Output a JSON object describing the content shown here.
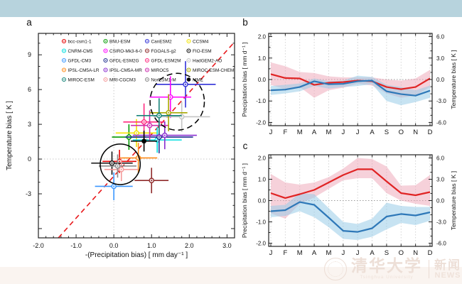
{
  "page": {
    "top_band_color": "#b7d3dd",
    "bottom_band_color": "#faf4f0",
    "background": "#ffffff"
  },
  "watermark": {
    "university_cn": "清华大学",
    "university_en": "Tsinghua University",
    "news_cn": "新闻",
    "news_en": "NEWS",
    "color": "#eddfd7"
  },
  "chart_data": [
    {
      "id": "a",
      "type": "scatter",
      "panel_label": "a",
      "xlabel": "-(Precipitation bias) [ mm day⁻¹ ]",
      "ylabel": "Temperature bias [ K ]",
      "xlim": [
        -2.0,
        3.2
      ],
      "ylim": [
        -6.8,
        10.85
      ],
      "xticks": [
        "-2.0",
        "-1.0",
        "0.0",
        "1.0",
        "2.0",
        "3.0"
      ],
      "xtick_values": [
        -2,
        -1,
        0,
        1,
        2,
        3
      ],
      "yticks": [
        "-3",
        "0",
        "3",
        "6",
        "9"
      ],
      "ytick_values": [
        -3,
        0,
        3,
        6,
        9
      ],
      "x_minor_step": 0.2,
      "y_minor_step": 1,
      "zero_line_color": "#c9c9c9",
      "grid": false,
      "identity_line": {
        "color": "#e8191c",
        "dashed": true,
        "x1": -1.47,
        "y1": -6.8,
        "x2": 3.19,
        "y2": 10.07
      },
      "cluster_circles": [
        {
          "label": "near-origin-cluster",
          "dashed": false,
          "cx": 0.17,
          "cy": -0.45,
          "rx": 0.53,
          "ry": 1.75
        },
        {
          "label": "warm-dry-cluster",
          "dashed": true,
          "cx": 1.68,
          "cy": 4.95,
          "rx": 0.72,
          "ry": 2.45
        }
      ],
      "legend_order": [
        "bcc-csm1-1",
        "BNU-ESM",
        "CanESM2",
        "CCSM4",
        "CNRM-CM5",
        "CSIRO-Mk3-6-0",
        "FGOALS-g2",
        "FIO-ESM",
        "GFDL-CM3",
        "GFDL-ESM2G",
        "GFDL-ESM2M",
        "HadGEM2-AO",
        "IPSL-CM5A-LR",
        "IPSL-CM5A-MR",
        "MIROC5",
        "MIROC-ESM-CHEM",
        "MIROC-ESM",
        "MRI-CGCM3",
        "NorESM1-M",
        "MME"
      ],
      "models": [
        {
          "name": "bcc-csm1-1",
          "color": "#e60000",
          "x": 0.15,
          "y": -0.2,
          "xerr": 0.45,
          "yerr": 1.0,
          "filled": false
        },
        {
          "name": "BNU-ESM",
          "color": "#009900",
          "x": 0.4,
          "y": 1.9,
          "xerr": 0.45,
          "yerr": 1.1,
          "filled": false
        },
        {
          "name": "CanESM2",
          "color": "#3030d8",
          "x": 1.9,
          "y": 6.45,
          "xerr": 0.8,
          "yerr": 2.0,
          "filled": false
        },
        {
          "name": "CCSM4",
          "color": "#f2e400",
          "x": 0.6,
          "y": 2.25,
          "xerr": 0.55,
          "yerr": 1.2,
          "filled": false
        },
        {
          "name": "CNRM-CM5",
          "color": "#00dede",
          "x": 1.15,
          "y": 1.65,
          "xerr": 0.65,
          "yerr": 1.1,
          "filled": false
        },
        {
          "name": "CSIRO-Mk3-6-0",
          "color": "#ff00ff",
          "x": 1.5,
          "y": 5.35,
          "xerr": 0.55,
          "yerr": 1.8,
          "filled": false
        },
        {
          "name": "FGOALS-g2",
          "color": "#8f2a2a",
          "x": 1.0,
          "y": -1.85,
          "xerr": 0.45,
          "yerr": 1.1,
          "filled": false
        },
        {
          "name": "FIO-ESM",
          "color": "#111111",
          "x": -0.05,
          "y": -0.35,
          "xerr": 0.55,
          "yerr": 1.0,
          "filled": false
        },
        {
          "name": "GFDL-CM3",
          "color": "#3a97ff",
          "x": 0.0,
          "y": -2.35,
          "xerr": 0.5,
          "yerr": 1.2,
          "filled": false
        },
        {
          "name": "GFDL-ESM2G",
          "color": "#1f2f8f",
          "x": 1.2,
          "y": 1.9,
          "xerr": 0.9,
          "yerr": 1.4,
          "filled": false
        },
        {
          "name": "GFDL-ESM2M",
          "color": "#ff2a7f",
          "x": 0.8,
          "y": 3.2,
          "xerr": 0.55,
          "yerr": 1.6,
          "filled": false
        },
        {
          "name": "HadGEM2-AO",
          "color": "#c4c4c4",
          "x": 1.8,
          "y": 3.65,
          "xerr": 0.75,
          "yerr": 1.3,
          "filled": false
        },
        {
          "name": "IPSL-CM5A-LR",
          "color": "#ff8c1a",
          "x": 0.65,
          "y": 0.1,
          "xerr": 0.5,
          "yerr": 1.3,
          "filled": false
        },
        {
          "name": "IPSL-CM5A-MR",
          "color": "#8a2fd0",
          "x": 1.35,
          "y": 2.05,
          "xerr": 0.85,
          "yerr": 1.2,
          "filled": false
        },
        {
          "name": "MIROC5",
          "color": "#cc2fae",
          "x": 0.95,
          "y": 2.9,
          "xerr": 0.5,
          "yerr": 1.3,
          "filled": false
        },
        {
          "name": "MIROC-ESM-CHEM",
          "color": "#a8a800",
          "x": 1.45,
          "y": 4.0,
          "xerr": 0.5,
          "yerr": 1.6,
          "filled": false
        },
        {
          "name": "MIROC-ESM",
          "color": "#18857a",
          "x": 1.2,
          "y": 3.75,
          "xerr": 0.6,
          "yerr": 1.5,
          "filled": false
        },
        {
          "name": "MRI-CGCM3",
          "color": "#f49a9a",
          "x": 0.2,
          "y": -0.9,
          "xerr": 0.45,
          "yerr": 1.0,
          "filled": false
        },
        {
          "name": "NorESM1-M",
          "color": "#8c8c8c",
          "x": 0.1,
          "y": -0.6,
          "xerr": 0.5,
          "yerr": 1.0,
          "filled": false
        },
        {
          "name": "MME",
          "color": "#000000",
          "x": 0.8,
          "y": 1.55,
          "xerr": 0.35,
          "yerr": 0.9,
          "filled": true
        }
      ]
    },
    {
      "id": "b",
      "type": "line",
      "panel_label": "b",
      "x_categories": [
        "J",
        "F",
        "M",
        "A",
        "M",
        "J",
        "J",
        "A",
        "S",
        "O",
        "N",
        "D"
      ],
      "ylabel_left": "Precipitation bias [ mm d⁻¹ ]",
      "ylabel_right": "Temperature bias [ K ]",
      "yticks_left": [
        "-2.0",
        "-1.0",
        "0.0",
        "1.0",
        "2.0"
      ],
      "ytick_values_left": [
        -2,
        -1,
        0,
        1,
        2
      ],
      "yticks_right": [
        "-6.0",
        "-3.0",
        "0.0",
        "3.0",
        "6.0"
      ],
      "ylim_left": [
        -2.15,
        2.15
      ],
      "right_axis_scale": 3,
      "grid": true,
      "series": [
        {
          "name": "red-line",
          "color": "#e02424",
          "band_color": "#eda3b5",
          "band_opacity": 0.5,
          "values": [
            0.25,
            0.07,
            0.05,
            -0.25,
            -0.15,
            -0.12,
            -0.05,
            -0.08,
            -0.35,
            -0.45,
            -0.35,
            0.05
          ],
          "band_upper": [
            0.8,
            0.62,
            0.35,
            0.3,
            0.15,
            0.1,
            0.1,
            0.1,
            0.0,
            -0.05,
            0.05,
            0.45
          ],
          "band_lower": [
            -0.25,
            -0.45,
            -0.35,
            -0.85,
            -0.5,
            -0.38,
            -0.2,
            -0.28,
            -0.65,
            -0.85,
            -0.75,
            -0.35
          ]
        },
        {
          "name": "blue-line",
          "color": "#2e78b8",
          "band_color": "#99cce8",
          "band_opacity": 0.55,
          "values": [
            -0.5,
            -0.47,
            -0.35,
            -0.08,
            -0.22,
            -0.2,
            -0.08,
            -0.05,
            -0.55,
            -0.68,
            -0.75,
            -0.52
          ],
          "band_upper": [
            -0.3,
            -0.25,
            -0.18,
            0.05,
            -0.08,
            -0.05,
            0.18,
            0.12,
            -0.25,
            -0.35,
            -0.5,
            -0.28
          ],
          "band_lower": [
            -0.72,
            -0.65,
            -0.55,
            -0.3,
            -0.42,
            -0.35,
            -0.3,
            -0.22,
            -1.0,
            -1.2,
            -1.05,
            -0.85
          ]
        }
      ]
    },
    {
      "id": "c",
      "type": "line",
      "panel_label": "c",
      "x_categories": [
        "J",
        "F",
        "M",
        "A",
        "M",
        "J",
        "J",
        "A",
        "S",
        "O",
        "N",
        "D"
      ],
      "ylabel_left": "Precipitation bias [ mm d⁻¹ ]",
      "ylabel_right": "Temperature bias [ K ]",
      "yticks_left": [
        "-2.0",
        "-1.0",
        "0.0",
        "1.0",
        "2.0"
      ],
      "ytick_values_left": [
        -2,
        -1,
        0,
        1,
        2
      ],
      "yticks_right": [
        "-6.0",
        "-3.0",
        "0.0",
        "3.0",
        "6.0"
      ],
      "ylim_left": [
        -2.15,
        2.15
      ],
      "right_axis_scale": 3,
      "grid": true,
      "series": [
        {
          "name": "red-line",
          "color": "#e02424",
          "band_color": "#eda3b5",
          "band_opacity": 0.5,
          "values": [
            0.35,
            0.12,
            0.3,
            0.5,
            0.85,
            1.2,
            1.47,
            1.47,
            0.9,
            0.35,
            0.25,
            0.4
          ],
          "band_upper": [
            1.25,
            0.85,
            0.75,
            0.85,
            1.1,
            1.5,
            2.0,
            1.95,
            1.6,
            0.7,
            0.72,
            1.2
          ],
          "band_lower": [
            -0.6,
            -0.85,
            -0.15,
            0.15,
            0.55,
            0.95,
            1.05,
            1.05,
            0.35,
            0.0,
            -0.15,
            -0.25
          ]
        },
        {
          "name": "blue-line",
          "color": "#2e78b8",
          "band_color": "#99cce8",
          "band_opacity": 0.55,
          "values": [
            -0.5,
            -0.45,
            -0.07,
            -0.2,
            -0.8,
            -1.42,
            -1.47,
            -1.3,
            -0.75,
            -0.63,
            -0.7,
            -0.55
          ],
          "band_upper": [
            -0.25,
            -0.2,
            0.35,
            0.3,
            -0.35,
            -1.0,
            -1.1,
            -0.85,
            -0.1,
            -0.25,
            -0.3,
            -0.3
          ],
          "band_lower": [
            -0.78,
            -0.72,
            -0.5,
            -0.78,
            -1.25,
            -1.8,
            -1.85,
            -1.7,
            -1.35,
            -1.05,
            -1.15,
            -0.95
          ]
        }
      ]
    }
  ]
}
